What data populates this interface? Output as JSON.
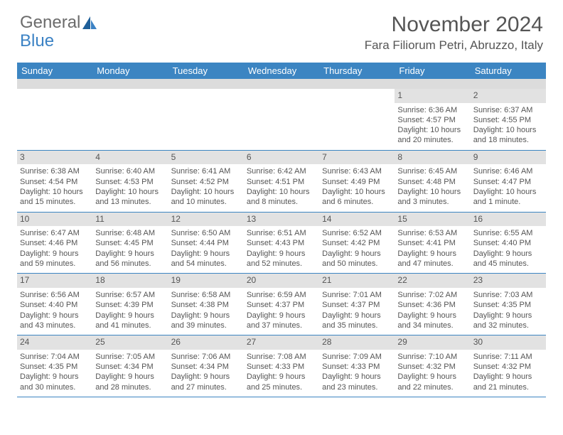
{
  "logo": {
    "text1": "General",
    "text2": "Blue"
  },
  "title": "November 2024",
  "location": "Fara Filiorum Petri, Abruzzo, Italy",
  "colors": {
    "header_blue": "#3c85c2",
    "band_gray": "#dcdcdc",
    "daynum_gray": "#e2e2e2",
    "text_gray": "#555555",
    "logo_gray": "#6b6b6b",
    "logo_blue": "#3b82c4"
  },
  "day_names": [
    "Sunday",
    "Monday",
    "Tuesday",
    "Wednesday",
    "Thursday",
    "Friday",
    "Saturday"
  ],
  "weeks": [
    [
      {
        "day": "",
        "sunrise": "",
        "sunset": "",
        "daylight": ""
      },
      {
        "day": "",
        "sunrise": "",
        "sunset": "",
        "daylight": ""
      },
      {
        "day": "",
        "sunrise": "",
        "sunset": "",
        "daylight": ""
      },
      {
        "day": "",
        "sunrise": "",
        "sunset": "",
        "daylight": ""
      },
      {
        "day": "",
        "sunrise": "",
        "sunset": "",
        "daylight": ""
      },
      {
        "day": "1",
        "sunrise": "Sunrise: 6:36 AM",
        "sunset": "Sunset: 4:57 PM",
        "daylight": "Daylight: 10 hours and 20 minutes."
      },
      {
        "day": "2",
        "sunrise": "Sunrise: 6:37 AM",
        "sunset": "Sunset: 4:55 PM",
        "daylight": "Daylight: 10 hours and 18 minutes."
      }
    ],
    [
      {
        "day": "3",
        "sunrise": "Sunrise: 6:38 AM",
        "sunset": "Sunset: 4:54 PM",
        "daylight": "Daylight: 10 hours and 15 minutes."
      },
      {
        "day": "4",
        "sunrise": "Sunrise: 6:40 AM",
        "sunset": "Sunset: 4:53 PM",
        "daylight": "Daylight: 10 hours and 13 minutes."
      },
      {
        "day": "5",
        "sunrise": "Sunrise: 6:41 AM",
        "sunset": "Sunset: 4:52 PM",
        "daylight": "Daylight: 10 hours and 10 minutes."
      },
      {
        "day": "6",
        "sunrise": "Sunrise: 6:42 AM",
        "sunset": "Sunset: 4:51 PM",
        "daylight": "Daylight: 10 hours and 8 minutes."
      },
      {
        "day": "7",
        "sunrise": "Sunrise: 6:43 AM",
        "sunset": "Sunset: 4:49 PM",
        "daylight": "Daylight: 10 hours and 6 minutes."
      },
      {
        "day": "8",
        "sunrise": "Sunrise: 6:45 AM",
        "sunset": "Sunset: 4:48 PM",
        "daylight": "Daylight: 10 hours and 3 minutes."
      },
      {
        "day": "9",
        "sunrise": "Sunrise: 6:46 AM",
        "sunset": "Sunset: 4:47 PM",
        "daylight": "Daylight: 10 hours and 1 minute."
      }
    ],
    [
      {
        "day": "10",
        "sunrise": "Sunrise: 6:47 AM",
        "sunset": "Sunset: 4:46 PM",
        "daylight": "Daylight: 9 hours and 59 minutes."
      },
      {
        "day": "11",
        "sunrise": "Sunrise: 6:48 AM",
        "sunset": "Sunset: 4:45 PM",
        "daylight": "Daylight: 9 hours and 56 minutes."
      },
      {
        "day": "12",
        "sunrise": "Sunrise: 6:50 AM",
        "sunset": "Sunset: 4:44 PM",
        "daylight": "Daylight: 9 hours and 54 minutes."
      },
      {
        "day": "13",
        "sunrise": "Sunrise: 6:51 AM",
        "sunset": "Sunset: 4:43 PM",
        "daylight": "Daylight: 9 hours and 52 minutes."
      },
      {
        "day": "14",
        "sunrise": "Sunrise: 6:52 AM",
        "sunset": "Sunset: 4:42 PM",
        "daylight": "Daylight: 9 hours and 50 minutes."
      },
      {
        "day": "15",
        "sunrise": "Sunrise: 6:53 AM",
        "sunset": "Sunset: 4:41 PM",
        "daylight": "Daylight: 9 hours and 47 minutes."
      },
      {
        "day": "16",
        "sunrise": "Sunrise: 6:55 AM",
        "sunset": "Sunset: 4:40 PM",
        "daylight": "Daylight: 9 hours and 45 minutes."
      }
    ],
    [
      {
        "day": "17",
        "sunrise": "Sunrise: 6:56 AM",
        "sunset": "Sunset: 4:40 PM",
        "daylight": "Daylight: 9 hours and 43 minutes."
      },
      {
        "day": "18",
        "sunrise": "Sunrise: 6:57 AM",
        "sunset": "Sunset: 4:39 PM",
        "daylight": "Daylight: 9 hours and 41 minutes."
      },
      {
        "day": "19",
        "sunrise": "Sunrise: 6:58 AM",
        "sunset": "Sunset: 4:38 PM",
        "daylight": "Daylight: 9 hours and 39 minutes."
      },
      {
        "day": "20",
        "sunrise": "Sunrise: 6:59 AM",
        "sunset": "Sunset: 4:37 PM",
        "daylight": "Daylight: 9 hours and 37 minutes."
      },
      {
        "day": "21",
        "sunrise": "Sunrise: 7:01 AM",
        "sunset": "Sunset: 4:37 PM",
        "daylight": "Daylight: 9 hours and 35 minutes."
      },
      {
        "day": "22",
        "sunrise": "Sunrise: 7:02 AM",
        "sunset": "Sunset: 4:36 PM",
        "daylight": "Daylight: 9 hours and 34 minutes."
      },
      {
        "day": "23",
        "sunrise": "Sunrise: 7:03 AM",
        "sunset": "Sunset: 4:35 PM",
        "daylight": "Daylight: 9 hours and 32 minutes."
      }
    ],
    [
      {
        "day": "24",
        "sunrise": "Sunrise: 7:04 AM",
        "sunset": "Sunset: 4:35 PM",
        "daylight": "Daylight: 9 hours and 30 minutes."
      },
      {
        "day": "25",
        "sunrise": "Sunrise: 7:05 AM",
        "sunset": "Sunset: 4:34 PM",
        "daylight": "Daylight: 9 hours and 28 minutes."
      },
      {
        "day": "26",
        "sunrise": "Sunrise: 7:06 AM",
        "sunset": "Sunset: 4:34 PM",
        "daylight": "Daylight: 9 hours and 27 minutes."
      },
      {
        "day": "27",
        "sunrise": "Sunrise: 7:08 AM",
        "sunset": "Sunset: 4:33 PM",
        "daylight": "Daylight: 9 hours and 25 minutes."
      },
      {
        "day": "28",
        "sunrise": "Sunrise: 7:09 AM",
        "sunset": "Sunset: 4:33 PM",
        "daylight": "Daylight: 9 hours and 23 minutes."
      },
      {
        "day": "29",
        "sunrise": "Sunrise: 7:10 AM",
        "sunset": "Sunset: 4:32 PM",
        "daylight": "Daylight: 9 hours and 22 minutes."
      },
      {
        "day": "30",
        "sunrise": "Sunrise: 7:11 AM",
        "sunset": "Sunset: 4:32 PM",
        "daylight": "Daylight: 9 hours and 21 minutes."
      }
    ]
  ]
}
